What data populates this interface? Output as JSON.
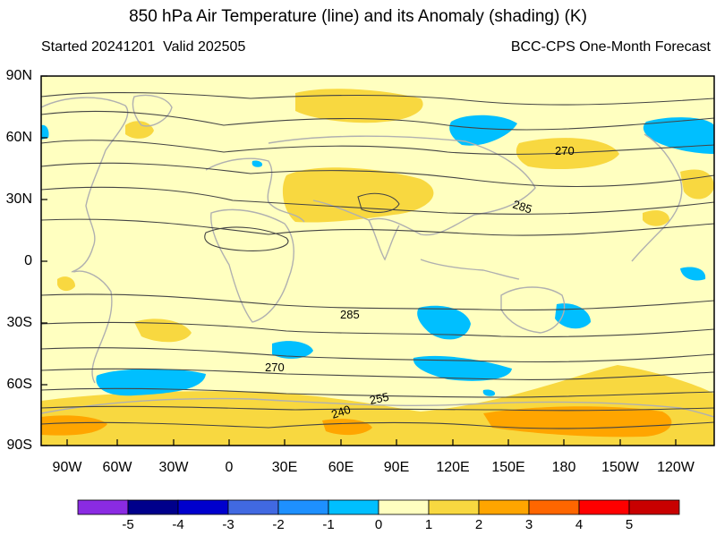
{
  "title": "850 hPa Air Temperature (line) and its Anomaly (shading) (K)",
  "subtitle_left": "Started 20241201  Valid 202505",
  "subtitle_right": "BCC-CPS One-Month Forecast",
  "y_labels": [
    "90N",
    "60N",
    "30N",
    "0",
    "30S",
    "60S",
    "90S"
  ],
  "x_labels": [
    "90W",
    "60W",
    "30W",
    "0",
    "30E",
    "60E",
    "90E",
    "120E",
    "150E",
    "180",
    "150W",
    "120W"
  ],
  "contour_labels": [
    "270",
    "285",
    "285",
    "270",
    "255",
    "240"
  ],
  "colorbar": {
    "labels": [
      "-5",
      "-4",
      "-3",
      "-2",
      "-1",
      "0",
      "1",
      "2",
      "3",
      "4",
      "5"
    ],
    "colors": [
      "#8a2be2",
      "#00008b",
      "#0000cd",
      "#4169e1",
      "#1e90ff",
      "#00bfff",
      "#ffffc0",
      "#f8d840",
      "#ffa500",
      "#ff6600",
      "#ff0000",
      "#c80000"
    ]
  },
  "anomaly_colors": {
    "background": "#ffffc0",
    "warm1": "#f8d840",
    "warm2": "#ffa500",
    "cool1": "#00bfff",
    "cool2": "#1e90ff"
  }
}
